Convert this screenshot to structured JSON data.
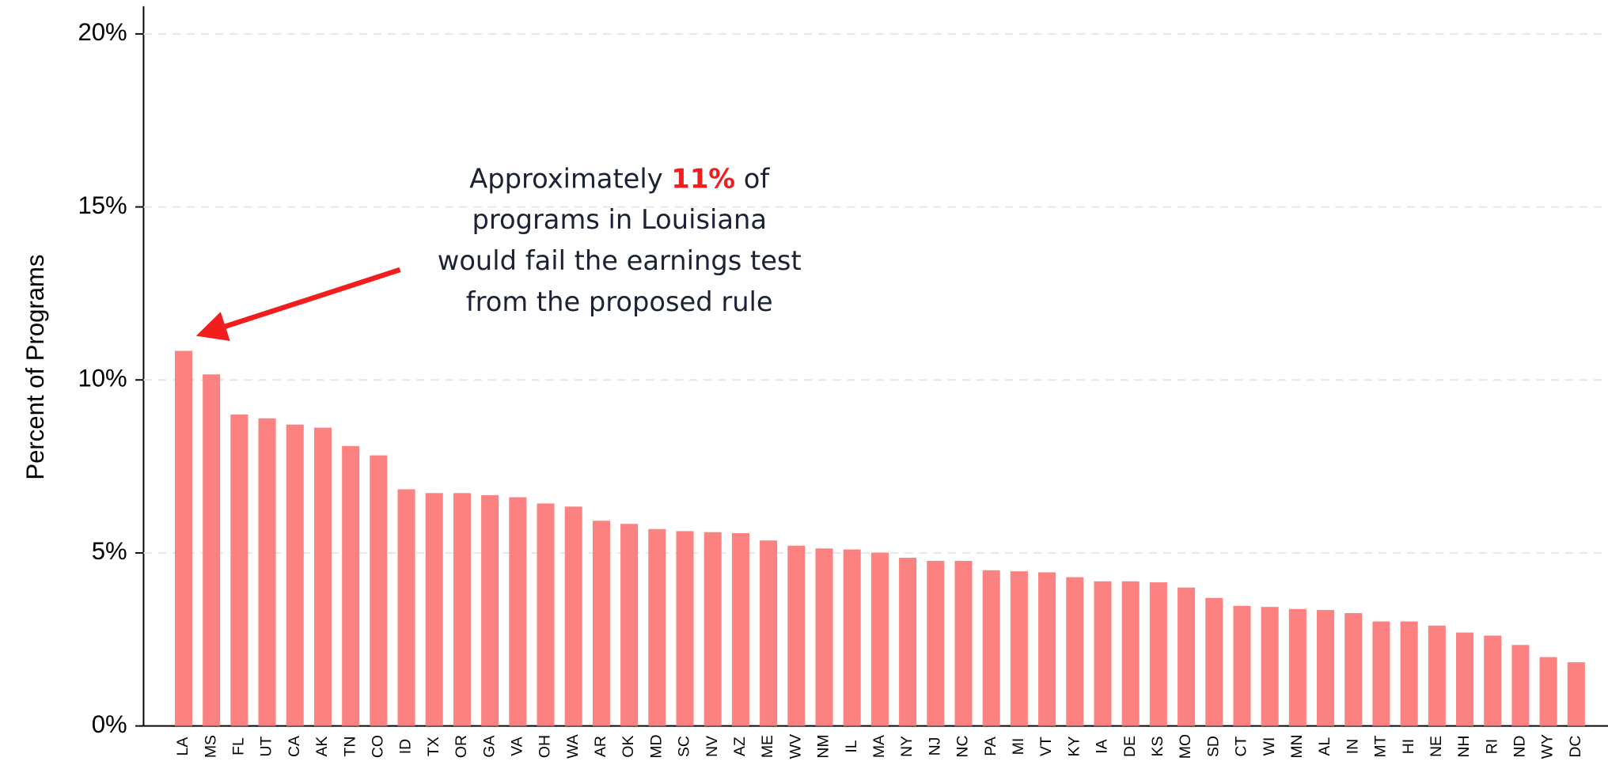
{
  "chart_data": {
    "type": "bar",
    "y_label": "Percent of Programs",
    "categories": [
      "LA",
      "MS",
      "FL",
      "UT",
      "CA",
      "AK",
      "TN",
      "CO",
      "ID",
      "TX",
      "OR",
      "GA",
      "VA",
      "OH",
      "WA",
      "AR",
      "OK",
      "MD",
      "SC",
      "NV",
      "AZ",
      "ME",
      "WV",
      "NM",
      "IL",
      "MA",
      "NY",
      "NJ",
      "NC",
      "PA",
      "MI",
      "VT",
      "KY",
      "IA",
      "DE",
      "KS",
      "MO",
      "SD",
      "CT",
      "WI",
      "MN",
      "AL",
      "IN",
      "MT",
      "HI",
      "NE",
      "NH",
      "RI",
      "ND",
      "WY",
      "DC"
    ],
    "values": [
      10.84,
      10.16,
      9.0,
      8.89,
      8.71,
      8.62,
      8.09,
      7.82,
      6.84,
      6.73,
      6.73,
      6.67,
      6.61,
      6.43,
      6.34,
      5.93,
      5.84,
      5.69,
      5.63,
      5.6,
      5.57,
      5.36,
      5.21,
      5.13,
      5.1,
      5.01,
      4.86,
      4.77,
      4.77,
      4.5,
      4.47,
      4.44,
      4.3,
      4.18,
      4.18,
      4.15,
      4.0,
      3.7,
      3.47,
      3.44,
      3.38,
      3.35,
      3.26,
      3.02,
      3.02,
      2.9,
      2.7,
      2.61,
      2.34,
      1.99,
      1.84
    ],
    "color": "#fc8181",
    "ylim": [
      0,
      20
    ],
    "yticks": [
      {
        "value": 0,
        "label": "0%"
      },
      {
        "value": 5,
        "label": "5%"
      },
      {
        "value": 10,
        "label": "10%"
      },
      {
        "value": 15,
        "label": "15%"
      },
      {
        "value": 20,
        "label": "20%"
      }
    ],
    "grid": true,
    "annotation": {
      "prefix": "Approximately",
      "highlight": "11%",
      "suffix": "of",
      "lines": [
        "programs in Louisiana",
        "would fail the earnings test",
        "from the proposed rule"
      ]
    }
  }
}
